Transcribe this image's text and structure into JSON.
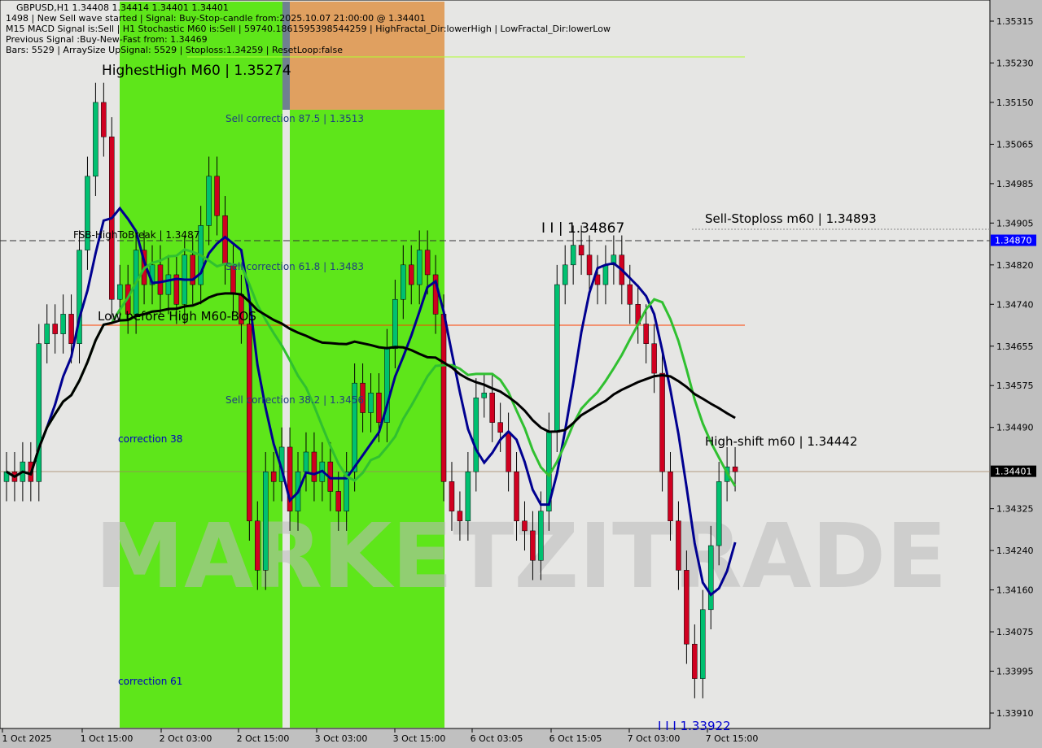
{
  "header": {
    "symbol_line": "GBPUSD,H1  1.34408 1.34414 1.34401 1.34401",
    "line2": "1498 | New Sell wave started | Signal: Buy-Stop-candle from:2025.10.07 21:00:00 @ 1.34401",
    "line3": "M15 MACD Signal is:Sell | H1 Stochastic M60 is:Sell | 59740.1861595398544259 | HighFractal_Dir:lowerHigh | LowFractal_Dir:lowerLow",
    "line4": "Previous Signal :Buy-New-Fast from: 1.34469",
    "line5": "Bars: 5529 | ArraySize UpSignal: 5529 | Stoploss:1.34259 | ResetLoop:false",
    "overlay": "HighestHigh  M60 | 1.35274"
  },
  "watermark": "MARKETZITRADE",
  "labels": {
    "sell_875": "Sell correction 87.5 | 1.3513",
    "sell_618": "Sell correction 61.8 | 1.3483",
    "sell_382": "Sell correction 38.2 | 1.3456",
    "fsb": "FSB-HighToBreak | 1.3487",
    "low_before": "Low before High   M60-BOS",
    "corr38": "correction 38",
    "corr61": "correction 61",
    "iii": "I I | 1.34867",
    "stoploss": "Sell-Stoploss m60 | 1.34893",
    "highshift": "High-shift m60 | 1.34442",
    "lowlow": "I I I 1.33922"
  },
  "colors": {
    "bull": "#00c070",
    "bear": "#d00020",
    "zone_green": "#5ee61a",
    "zone_orange": "#e0a060",
    "ma_blue": "#000090",
    "ma_green": "#30c030",
    "ma_black": "#000000"
  },
  "chart_data": {
    "type": "candlestick",
    "price_ticks": [
      "1.35315",
      "1.35230",
      "1.35150",
      "1.35065",
      "1.34985",
      "1.34905",
      "1.34820",
      "1.34740",
      "1.34655",
      "1.34575",
      "1.34490",
      "1.34325",
      "1.34240",
      "1.34160",
      "1.34075",
      "1.33995",
      "1.33910"
    ],
    "current_price": "1.34401",
    "marker_price": "1.34870",
    "time_ticks": [
      "1 Oct 2025",
      "1 Oct 15:00",
      "2 Oct 03:00",
      "2 Oct 15:00",
      "3 Oct 03:00",
      "3 Oct 15:00",
      "6 Oct 03:05",
      "6 Oct 15:05",
      "7 Oct 03:00",
      "7 Oct 15:00"
    ],
    "closes": [
      1.344,
      1.3438,
      1.3442,
      1.3438,
      1.3466,
      1.347,
      1.3468,
      1.3472,
      1.3466,
      1.3485,
      1.35,
      1.3515,
      1.3508,
      1.3475,
      1.3478,
      1.3472,
      1.3485,
      1.3478,
      1.3482,
      1.3476,
      1.348,
      1.3474,
      1.3484,
      1.3478,
      1.349,
      1.35,
      1.3492,
      1.3482,
      1.3476,
      1.347,
      1.343,
      1.342,
      1.344,
      1.3438,
      1.3445,
      1.3432,
      1.344,
      1.3444,
      1.3438,
      1.3442,
      1.3436,
      1.3432,
      1.344,
      1.3458,
      1.3452,
      1.3456,
      1.345,
      1.3465,
      1.3475,
      1.3482,
      1.3478,
      1.3485,
      1.348,
      1.3472,
      1.3438,
      1.3432,
      1.343,
      1.344,
      1.3455,
      1.3456,
      1.345,
      1.3448,
      1.344,
      1.343,
      1.3428,
      1.3422,
      1.3432,
      1.3448,
      1.3478,
      1.3482,
      1.3486,
      1.3484,
      1.348,
      1.3478,
      1.3482,
      1.3484,
      1.3478,
      1.3474,
      1.347,
      1.3466,
      1.346,
      1.344,
      1.343,
      1.342,
      1.3405,
      1.3398,
      1.3412,
      1.3425,
      1.3438,
      1.3441,
      1.344
    ]
  }
}
